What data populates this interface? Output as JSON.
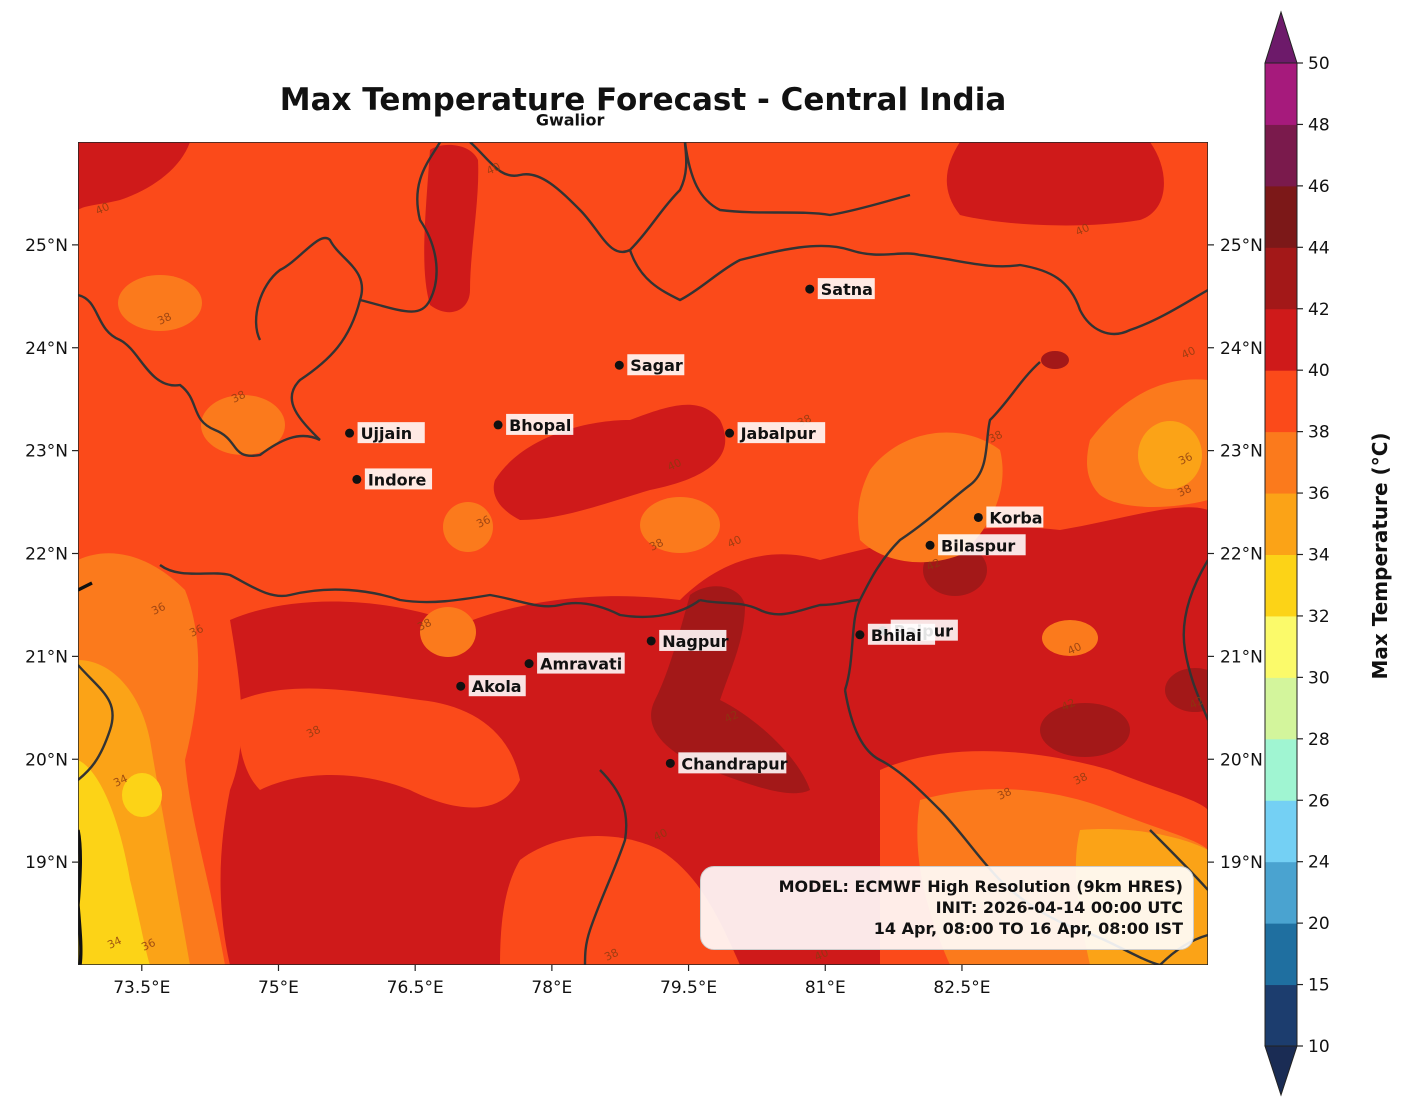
{
  "title": "Max Temperature Forecast - Central India",
  "map": {
    "lon_range": [
      72.8,
      85.2
    ],
    "lat_range": [
      18.0,
      26.0
    ],
    "lon_ticks": [
      {
        "value": 73.5,
        "label": "73.5°E"
      },
      {
        "value": 75,
        "label": "75°E"
      },
      {
        "value": 76.5,
        "label": "76.5°E"
      },
      {
        "value": 78,
        "label": "78°E"
      },
      {
        "value": 79.5,
        "label": "79.5°E"
      },
      {
        "value": 81,
        "label": "81°E"
      },
      {
        "value": 82.5,
        "label": "82.5°E"
      }
    ],
    "lat_ticks": [
      {
        "value": 19,
        "label": "19°N"
      },
      {
        "value": 20,
        "label": "20°N"
      },
      {
        "value": 21,
        "label": "21°N"
      },
      {
        "value": 22,
        "label": "22°N"
      },
      {
        "value": 23,
        "label": "23°N"
      },
      {
        "value": 24,
        "label": "24°N"
      },
      {
        "value": 25,
        "label": "25°N"
      }
    ],
    "cities": [
      {
        "name": "Gwalior",
        "lon": 78.2,
        "lat": 26.22
      },
      {
        "name": "Satna",
        "lon": 80.83,
        "lat": 24.57
      },
      {
        "name": "Sagar",
        "lon": 78.74,
        "lat": 23.83
      },
      {
        "name": "Ujjain",
        "lon": 75.78,
        "lat": 23.17
      },
      {
        "name": "Bhopal",
        "lon": 77.41,
        "lat": 23.25
      },
      {
        "name": "Jabalpur",
        "lon": 79.95,
        "lat": 23.17
      },
      {
        "name": "Indore",
        "lon": 75.86,
        "lat": 22.72
      },
      {
        "name": "Korba",
        "lon": 82.68,
        "lat": 22.35
      },
      {
        "name": "Bilaspur",
        "lon": 82.15,
        "lat": 22.08
      },
      {
        "name": "Raipur",
        "lon": 81.63,
        "lat": 21.25
      },
      {
        "name": "Bhilai",
        "lon": 81.38,
        "lat": 21.21
      },
      {
        "name": "Nagpur",
        "lon": 79.09,
        "lat": 21.15
      },
      {
        "name": "Amravati",
        "lon": 77.75,
        "lat": 20.93
      },
      {
        "name": "Akola",
        "lon": 77.0,
        "lat": 20.71
      },
      {
        "name": "Chandrapur",
        "lon": 79.3,
        "lat": 19.96
      }
    ],
    "info_lines": [
      "MODEL: ECMWF High Resolution (9km HRES)",
      "INIT: 2026-04-14 00:00 UTC",
      "14 Apr, 08:00 TO 16 Apr, 08:00 IST"
    ],
    "contour_labels": [
      "40",
      "38",
      "36",
      "34",
      "42"
    ]
  },
  "colorbar": {
    "title": "Max Temperature (°C)",
    "levels": [
      10,
      15,
      20,
      24,
      26,
      28,
      30,
      32,
      34,
      36,
      38,
      40,
      42,
      44,
      46,
      48,
      50
    ],
    "colors": [
      "#1c3d6e",
      "#1f6fa0",
      "#4aa3d0",
      "#74d0f4",
      "#a0f5d2",
      "#d3f59c",
      "#fbfa6a",
      "#fcd317",
      "#fba317",
      "#fb7a1c",
      "#fb4a1a",
      "#cf1a1a",
      "#a31818",
      "#7c1818",
      "#7a1a4c",
      "#a61a7c"
    ],
    "under_color": "#1a2c54",
    "over_color": "#6d1a6a"
  }
}
